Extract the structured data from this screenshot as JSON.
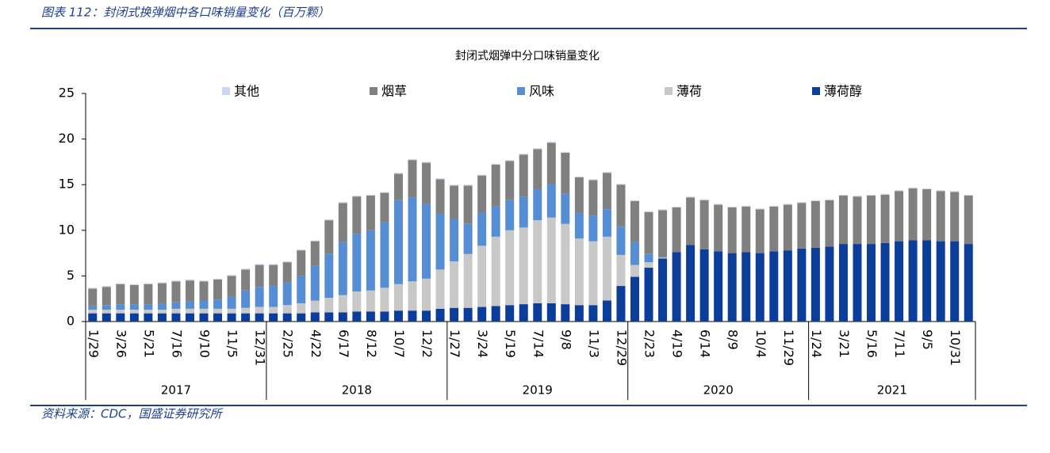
{
  "header": "图表 112：封闭式换弹烟中各口味销量变化（百万颗）",
  "source": "资料来源：CDC，国盛证券研究所",
  "chart_data": {
    "type": "stacked_bar",
    "title": "封闭式烟弹中分口味销量变化",
    "categories": [
      "1/29",
      null,
      "3/26",
      null,
      "5/21",
      null,
      "7/16",
      null,
      "9/10",
      null,
      "11/5",
      null,
      "12/31",
      null,
      "2/25",
      null,
      "4/22",
      null,
      "6/17",
      null,
      "8/12",
      null,
      "10/7",
      null,
      "12/2",
      null,
      "1/27",
      null,
      "3/24",
      null,
      "5/19",
      null,
      "7/14",
      null,
      "9/8",
      null,
      "11/3",
      null,
      "12/29",
      null,
      "2/23",
      null,
      "4/19",
      null,
      "6/14",
      null,
      "8/9",
      null,
      "10/4",
      null,
      "11/29",
      null,
      "1/24",
      null,
      "3/21",
      null,
      "5/16",
      null,
      "7/11",
      null,
      "9/5",
      null,
      "10/31",
      null
    ],
    "years": [
      "2017",
      "2018",
      "2019",
      "2020",
      "2021"
    ],
    "ylim": [
      0,
      25
    ],
    "yticks": [
      0,
      5,
      10,
      15,
      20,
      25
    ],
    "series": [
      {
        "name": "薄荷醇",
        "color": "#0b3d99",
        "values": [
          0.9,
          0.9,
          0.9,
          0.9,
          0.9,
          0.9,
          0.9,
          0.9,
          0.9,
          0.9,
          0.9,
          0.9,
          0.9,
          0.9,
          0.9,
          0.9,
          1.0,
          1.0,
          1.0,
          1.1,
          1.1,
          1.1,
          1.2,
          1.2,
          1.2,
          1.4,
          1.5,
          1.5,
          1.6,
          1.7,
          1.8,
          1.9,
          2.0,
          2.0,
          1.9,
          1.8,
          1.8,
          2.3,
          3.9,
          4.9,
          5.9,
          6.9,
          7.6,
          8.4,
          7.9,
          7.7,
          7.5,
          7.6,
          7.5,
          7.7,
          7.8,
          8.0,
          8.1,
          8.2,
          8.5,
          8.5,
          8.5,
          8.6,
          8.8,
          8.9,
          8.9,
          8.8,
          8.8,
          8.5
        ]
      },
      {
        "name": "薄荷",
        "color": "#c8c8c8",
        "values": [
          0.4,
          0.4,
          0.4,
          0.4,
          0.4,
          0.4,
          0.5,
          0.5,
          0.5,
          0.5,
          0.5,
          0.6,
          0.7,
          0.7,
          0.9,
          1.1,
          1.3,
          1.6,
          1.9,
          2.2,
          2.3,
          2.6,
          2.9,
          3.2,
          3.5,
          4.3,
          5.1,
          5.9,
          6.7,
          7.6,
          8.2,
          8.4,
          9.1,
          9.4,
          8.8,
          7.3,
          7.0,
          7.0,
          3.4,
          1.3,
          0.6,
          0.1,
          0,
          0,
          0,
          0,
          0,
          0,
          0,
          0,
          0,
          0,
          0,
          0,
          0,
          0,
          0,
          0,
          0,
          0,
          0,
          0,
          0,
          0
        ]
      },
      {
        "name": "风味",
        "color": "#558ed5",
        "values": [
          0.4,
          0.5,
          0.6,
          0.6,
          0.6,
          0.7,
          0.7,
          0.8,
          0.9,
          1.0,
          1.3,
          1.9,
          2.2,
          2.3,
          2.5,
          3.0,
          3.8,
          4.8,
          5.8,
          6.3,
          6.6,
          7.2,
          9.2,
          9.2,
          8.2,
          6.1,
          4.6,
          3.3,
          3.6,
          3.3,
          3.3,
          3.4,
          3.4,
          3.7,
          3.3,
          2.8,
          2.8,
          3.0,
          3.1,
          2.5,
          0.9,
          0.1,
          0,
          0,
          0,
          0,
          0,
          0,
          0,
          0,
          0,
          0,
          0,
          0,
          0,
          0,
          0,
          0,
          0,
          0,
          0,
          0,
          0,
          0
        ]
      },
      {
        "name": "烟草",
        "color": "#808080",
        "values": [
          1.9,
          2.0,
          2.2,
          2.1,
          2.2,
          2.2,
          2.3,
          2.3,
          2.1,
          2.2,
          2.3,
          2.3,
          2.4,
          2.3,
          2.2,
          2.8,
          2.7,
          3.7,
          4.3,
          4.1,
          3.8,
          3.2,
          2.9,
          4.1,
          4.5,
          3.8,
          3.7,
          4.2,
          4.1,
          4.6,
          4.3,
          4.6,
          4.4,
          4.5,
          4.5,
          3.9,
          3.9,
          4.0,
          4.6,
          4.5,
          4.6,
          5.1,
          4.9,
          5.2,
          5.4,
          5.1,
          5.0,
          5.0,
          4.8,
          4.9,
          5.0,
          5.0,
          5.1,
          5.1,
          5.3,
          5.2,
          5.3,
          5.3,
          5.5,
          5.7,
          5.6,
          5.5,
          5.4,
          5.3
        ]
      },
      {
        "name": "其他",
        "color": "#c6d9f1",
        "values": [
          0.1,
          0.1,
          0.1,
          0.1,
          0.1,
          0.1,
          0.1,
          0.1,
          0.1,
          0.1,
          0.1,
          0.1,
          0.1,
          0.1,
          0.1,
          0.1,
          0.1,
          0.1,
          0.1,
          0.1,
          0.1,
          0.1,
          0.1,
          0.1,
          0.1,
          0.1,
          0.1,
          0.1,
          0.1,
          0.1,
          0.1,
          0.1,
          0.1,
          0.1,
          0.1,
          0.1,
          0.1,
          0.1,
          0.1,
          0.1,
          0.1,
          0.1,
          0.1,
          0.1,
          0.1,
          0.1,
          0.1,
          0.1,
          0.1,
          0.1,
          0.1,
          0.1,
          0.1,
          0.1,
          0.1,
          0.1,
          0.1,
          0.1,
          0.1,
          0.1,
          0.1,
          0.1,
          0.1,
          0.1
        ]
      }
    ]
  }
}
